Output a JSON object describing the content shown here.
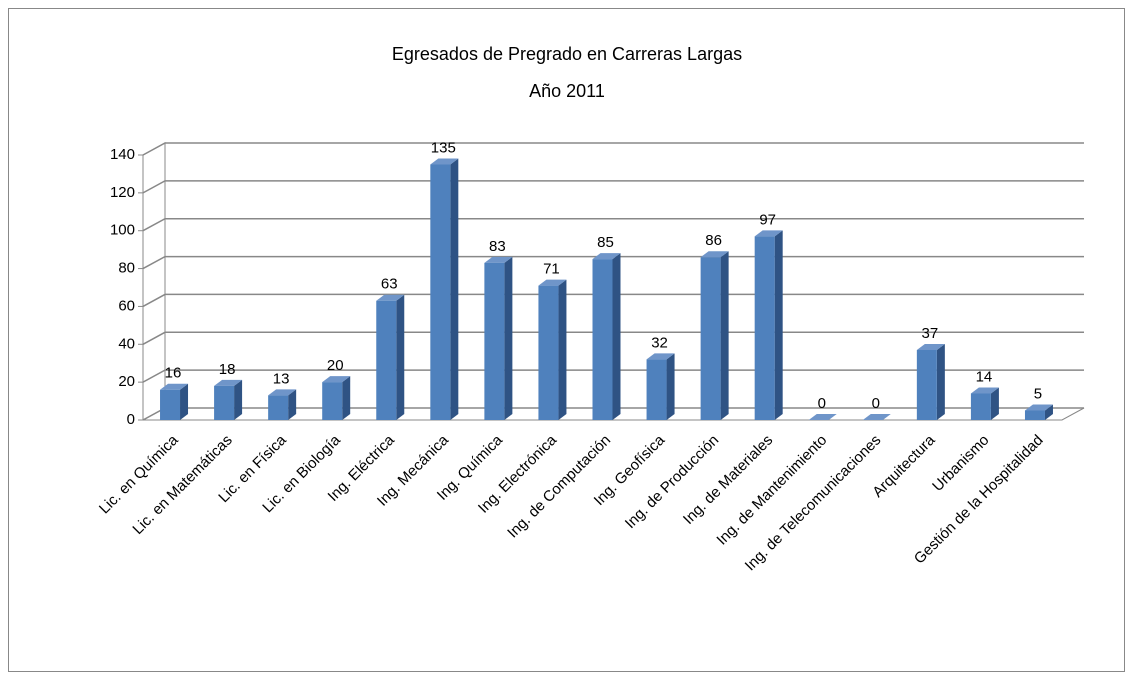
{
  "chart_data": {
    "type": "bar",
    "title": "Egresados de Pregrado en Carreras Largas",
    "subtitle": "Año 2011",
    "categories": [
      "Lic. en Química",
      "Lic. en Matemáticas",
      "Lic. en Física",
      "Lic. en Biología",
      "Ing. Eléctrica",
      "Ing. Mecánica",
      "Ing. Química",
      "Ing. Electrónica",
      "Ing. de Computación",
      "Ing. Geofísica",
      "Ing. de Producción",
      "Ing. de Materiales",
      "Ing. de Mantenimiento",
      "Ing. de Telecomunicaciones",
      "Arquitectura",
      "Urbanismo",
      "Gestión de la Hospitalidad"
    ],
    "values": [
      16,
      18,
      13,
      20,
      63,
      135,
      83,
      71,
      85,
      32,
      86,
      97,
      0,
      0,
      37,
      14,
      5
    ],
    "color": "#4f81bd",
    "ylim": [
      0,
      140
    ],
    "yticks": [
      0,
      20,
      40,
      60,
      80,
      100,
      120,
      140
    ],
    "grid": true
  }
}
